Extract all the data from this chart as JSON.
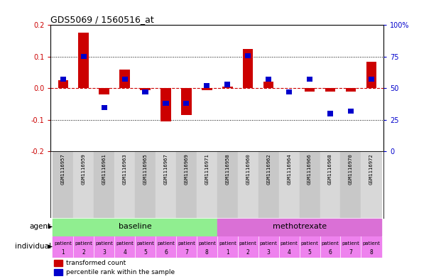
{
  "title": "GDS5069 / 1560516_at",
  "samples": [
    "GSM1116957",
    "GSM1116959",
    "GSM1116961",
    "GSM1116963",
    "GSM1116965",
    "GSM1116967",
    "GSM1116969",
    "GSM1116971",
    "GSM1116958",
    "GSM1116960",
    "GSM1116962",
    "GSM1116964",
    "GSM1116966",
    "GSM1116968",
    "GSM1116970",
    "GSM1116972"
  ],
  "red_values": [
    0.025,
    0.175,
    -0.02,
    0.06,
    -0.005,
    -0.105,
    -0.085,
    -0.005,
    0.005,
    0.125,
    0.02,
    0.0,
    -0.01,
    -0.01,
    -0.01,
    0.085
  ],
  "blue_values_pct": [
    57,
    75,
    35,
    57,
    47,
    38,
    38,
    52,
    53,
    76,
    57,
    47,
    57,
    30,
    32,
    57
  ],
  "ylim_left": [
    -0.2,
    0.2
  ],
  "ylim_right": [
    0,
    100
  ],
  "yticks_left": [
    -0.2,
    -0.1,
    0.0,
    0.1,
    0.2
  ],
  "yticks_right": [
    0,
    25,
    50,
    75,
    100
  ],
  "ytick_labels_right": [
    "0",
    "25",
    "50",
    "75",
    "100%"
  ],
  "groups": [
    {
      "label": "baseline",
      "start": 0,
      "end": 7,
      "color": "#90EE90"
    },
    {
      "label": "methotrexate",
      "start": 8,
      "end": 15,
      "color": "#DA70D6"
    }
  ],
  "patient_labels_top": [
    "patient",
    "patient",
    "patient",
    "patient",
    "patient",
    "patient",
    "patient",
    "patient",
    "patient",
    "patient",
    "patient",
    "patient",
    "patient",
    "patient",
    "patient",
    "patient"
  ],
  "patient_labels_bot": [
    "1",
    "2",
    "3",
    "4",
    "5",
    "6",
    "7",
    "8",
    "1",
    "2",
    "3",
    "4",
    "5",
    "6",
    "7",
    "8"
  ],
  "agent_label": "agent",
  "individual_label": "individual",
  "legend_red": "transformed count",
  "legend_blue": "percentile rank within the sample",
  "bar_width": 0.5,
  "red_color": "#CC0000",
  "blue_color": "#0000CC",
  "zero_line_color": "#CC0000",
  "dotted_line_color": "black",
  "bg_color": "#ffffff",
  "plot_bg_color": "#ffffff",
  "sample_bg_color": "#c8c8c8",
  "sample_alt_bg_color": "#d8d8d8",
  "indiv_color": "#ee82ee",
  "green_color": "#90EE90",
  "purple_color": "#DA70D6"
}
